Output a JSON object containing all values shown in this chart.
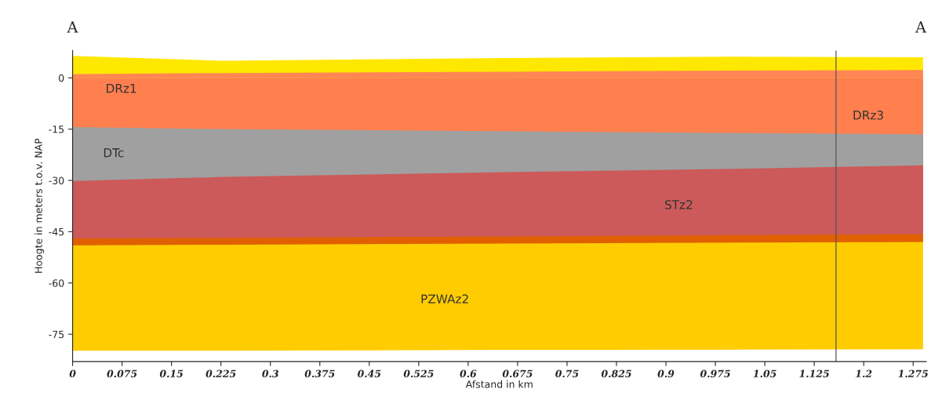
{
  "chart_data": {
    "type": "area",
    "xlabel": "Afstand in km",
    "ylabel": "Hoogte in meters t.o.v. NAP",
    "x": [
      0,
      0.225,
      0.65,
      1.0,
      1.29
    ],
    "series": [
      {
        "color": "#ffcc00",
        "values": [
          -79.8,
          -79.8,
          -79.6,
          -79.5,
          -79.4
        ]
      },
      {
        "color": "#e06000",
        "values": [
          -49,
          -48.8,
          -48.5,
          -48.2,
          -48
        ]
      },
      {
        "color": "#cc5a5a",
        "values": [
          -47,
          -46.8,
          -46.4,
          -46,
          -45.7
        ]
      },
      {
        "color": "#a0a0a0",
        "values": [
          -30.2,
          -29,
          -27.6,
          -26.6,
          -25.6
        ]
      },
      {
        "color": "#ff7f4f",
        "values": [
          -14.4,
          -15,
          -15.6,
          -16.1,
          -16.5
        ]
      },
      {
        "color": "#ffe800",
        "values": [
          6.4,
          5,
          5.8,
          6.2,
          6
        ]
      },
      {
        "color": "#ff8654",
        "values": [
          1.1,
          1.4,
          1.8,
          2.1,
          2.3
        ]
      }
    ],
    "xlim": [
      0,
      1.295
    ],
    "ylim": [
      -83,
      8
    ],
    "xticks": [
      0,
      0.075,
      0.15,
      0.225,
      0.3,
      0.375,
      0.45,
      0.525,
      0.6,
      0.675,
      0.75,
      0.825,
      0.9,
      0.975,
      1.05,
      1.125,
      1.2,
      1.275
    ],
    "yticks": [
      0,
      -15,
      -30,
      -45,
      -60,
      -75
    ],
    "ref_lines": [
      {
        "axis": "x",
        "value": 1.158,
        "color": "#555555"
      }
    ],
    "annotations": [
      "A",
      "A",
      "DRz1",
      "DTc",
      "DRz3",
      "STz2",
      "PZWAz2"
    ],
    "grid": false,
    "legend": false
  }
}
